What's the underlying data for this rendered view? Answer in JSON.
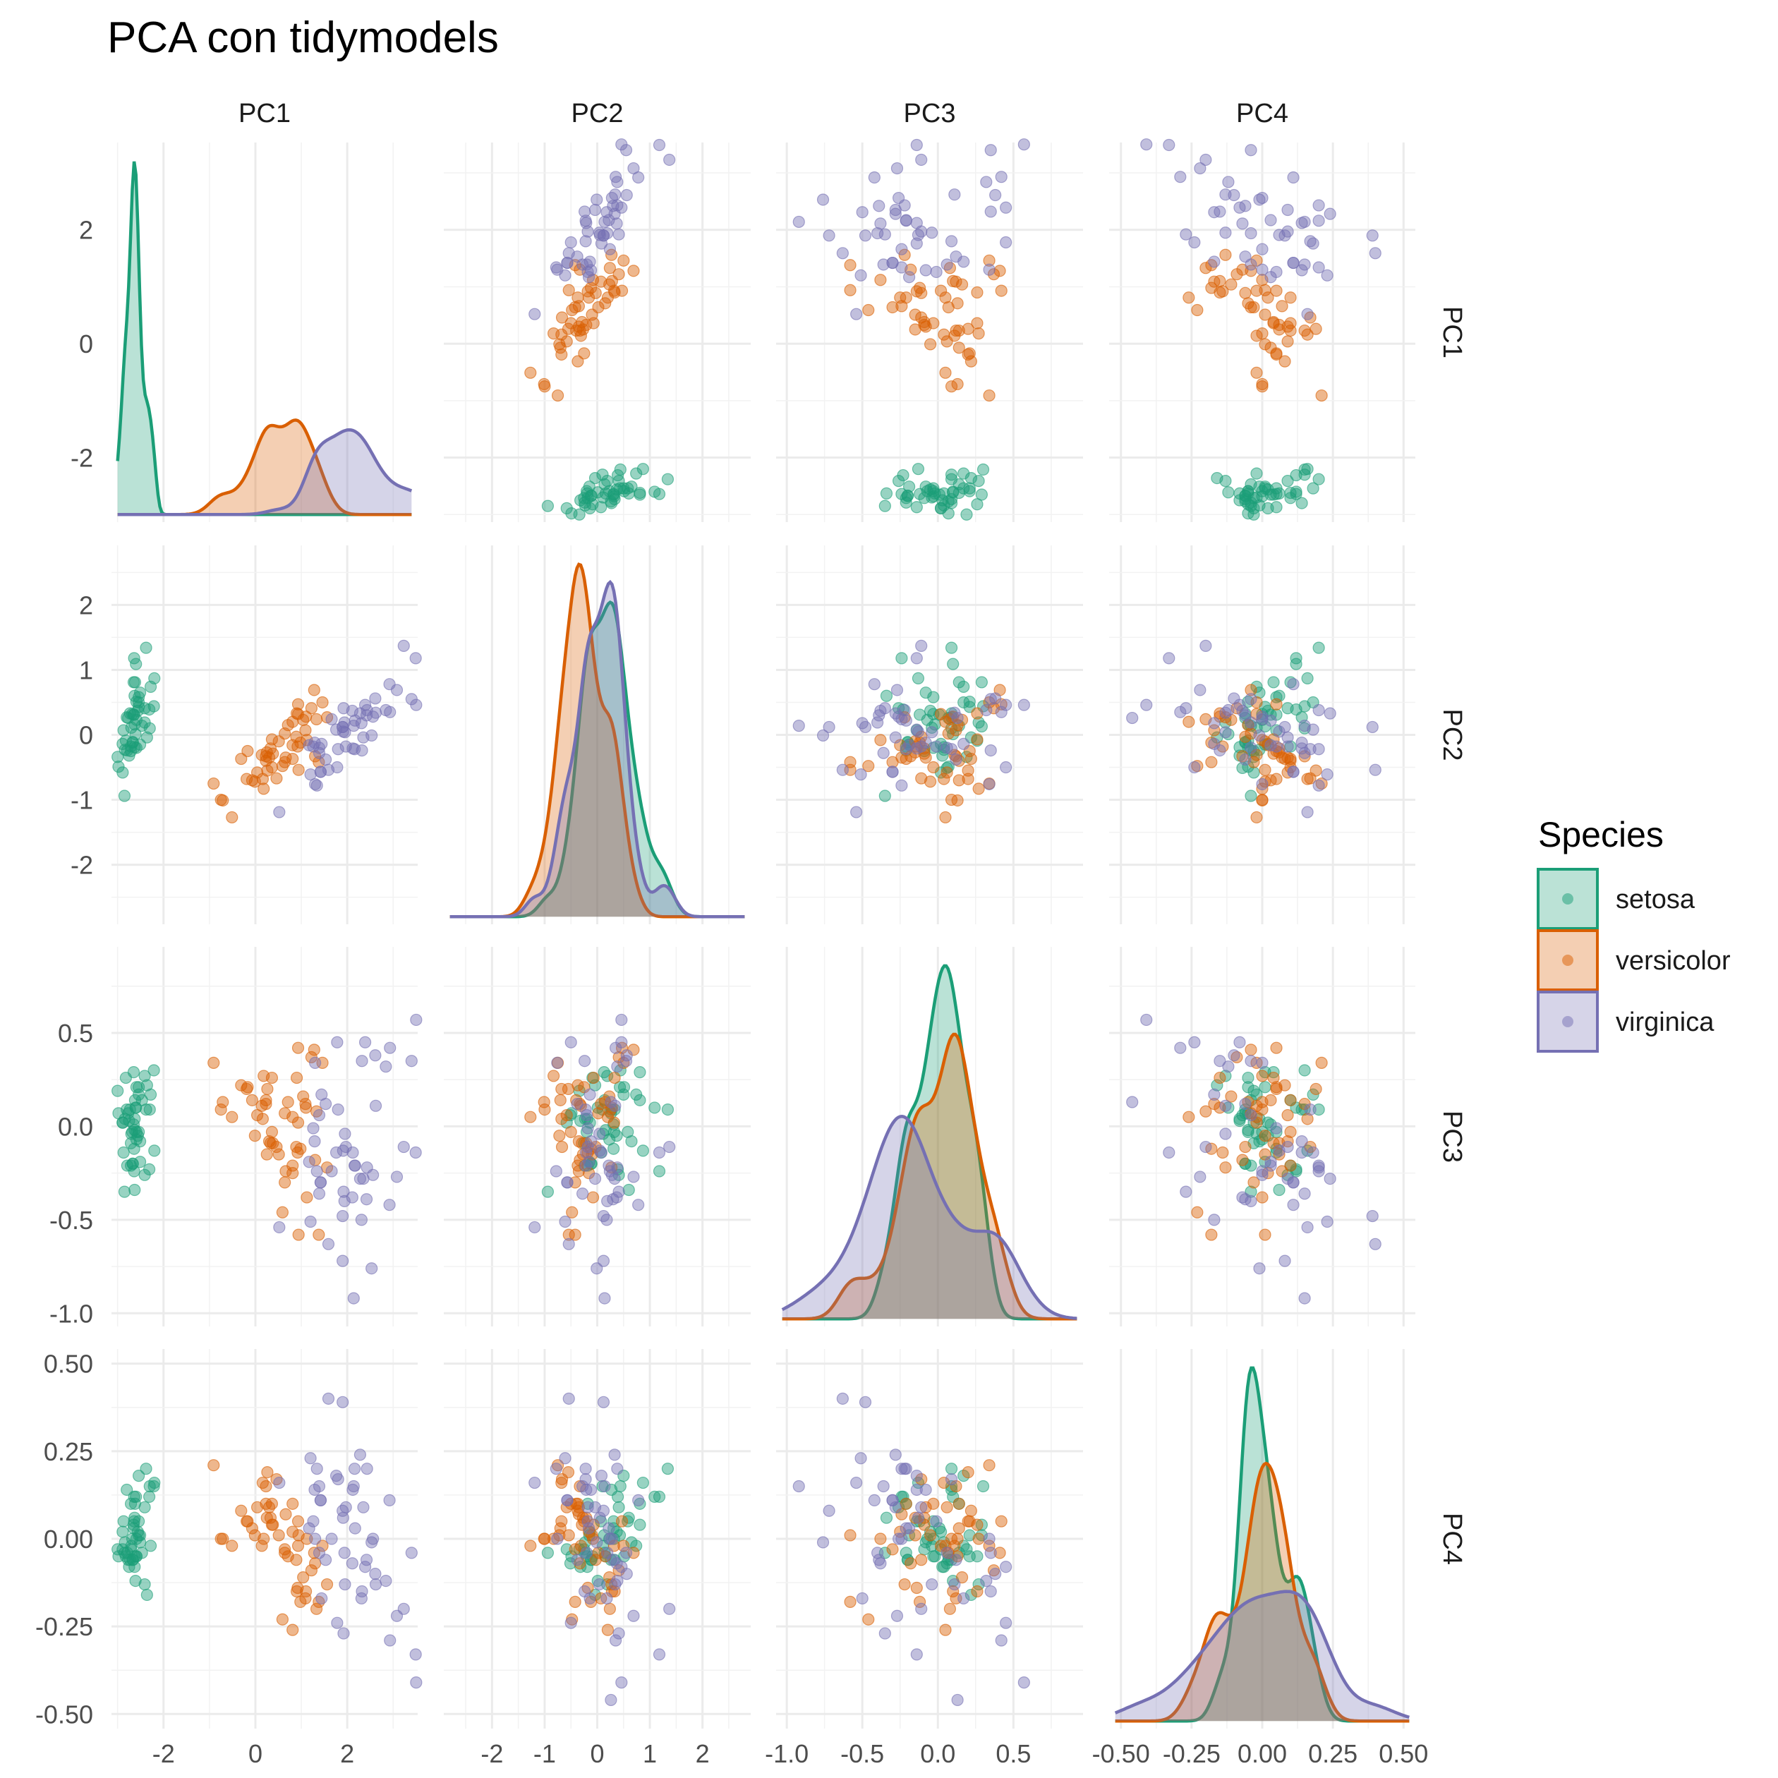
{
  "title": "PCA con tidymodels",
  "legend": {
    "title": "Species",
    "entries": [
      {
        "name": "setosa",
        "color": "#1B9E77"
      },
      {
        "name": "versicolor",
        "color": "#D95F02"
      },
      {
        "name": "virginica",
        "color": "#7570B3"
      }
    ]
  },
  "chart_data": {
    "type": "scatter",
    "subtype": "pairs-matrix",
    "variables": [
      "PC1",
      "PC2",
      "PC3",
      "PC4"
    ],
    "diagonal": "density",
    "grid": true,
    "legend_position": "right",
    "axes": {
      "PC1": {
        "range": [
          -3.0,
          3.4
        ],
        "ticks": [
          -2,
          0,
          2
        ],
        "tick_labels": [
          "-2",
          "0",
          "2"
        ]
      },
      "PC2": {
        "range": [
          -2.8,
          2.8
        ],
        "ticks": [
          -2,
          -1,
          0,
          1,
          2
        ],
        "tick_labels": [
          "-2",
          "-1",
          "0",
          "1",
          "2"
        ]
      },
      "PC3": {
        "range": [
          -1.03,
          0.92
        ],
        "ticks": [
          -1.0,
          -0.5,
          0.0,
          0.5
        ],
        "tick_labels": [
          "-1.0",
          "-0.5",
          "0.0",
          "0.5"
        ]
      },
      "PC4": {
        "range": [
          -0.52,
          0.52
        ],
        "ticks": [
          -0.5,
          -0.25,
          0.0,
          0.25,
          0.5
        ],
        "tick_labels": [
          "-0.50",
          "-0.25",
          "0.00",
          "0.25",
          "0.50"
        ]
      }
    },
    "series": [
      {
        "name": "setosa",
        "color": "#1B9E77",
        "points": [
          [
            -2.68,
            0.32,
            -0.03,
            0.0
          ],
          [
            -2.71,
            -0.18,
            -0.21,
            0.1
          ],
          [
            -2.89,
            -0.14,
            0.02,
            0.02
          ],
          [
            -2.75,
            -0.32,
            0.03,
            -0.08
          ],
          [
            -2.73,
            0.33,
            0.09,
            -0.06
          ],
          [
            -2.28,
            0.74,
            0.17,
            -0.02
          ],
          [
            -2.82,
            -0.09,
            0.26,
            -0.05
          ],
          [
            -2.63,
            0.16,
            -0.02,
            -0.05
          ],
          [
            -2.89,
            -0.58,
            0.02,
            -0.03
          ],
          [
            -2.67,
            -0.11,
            -0.2,
            -0.06
          ],
          [
            -2.51,
            0.65,
            -0.08,
            -0.01
          ],
          [
            -2.61,
            0.01,
            0.1,
            -0.12
          ],
          [
            -2.79,
            -0.24,
            -0.21,
            -0.04
          ],
          [
            -3.23,
            -0.51,
            0.06,
            -0.07
          ],
          [
            -2.64,
            1.18,
            -0.24,
            0.12
          ],
          [
            -2.38,
            1.34,
            0.09,
            0.2
          ],
          [
            -2.62,
            0.81,
            0.14,
            0.1
          ],
          [
            -2.65,
            0.31,
            0.01,
            0.03
          ],
          [
            -2.2,
            0.87,
            -0.13,
            0.16
          ],
          [
            -2.59,
            0.51,
            0.21,
            -0.05
          ],
          [
            -2.31,
            0.39,
            -0.23,
            0.12
          ],
          [
            -2.54,
            0.43,
            0.21,
            0.01
          ],
          [
            -3.22,
            0.13,
            0.29,
            0.01
          ],
          [
            -2.3,
            0.1,
            0.09,
            0.15
          ],
          [
            -2.36,
            -0.04,
            0.22,
            -0.16
          ],
          [
            -2.51,
            -0.15,
            -0.19,
            0.01
          ],
          [
            -2.47,
            0.14,
            0.14,
            -0.04
          ],
          [
            -2.56,
            0.37,
            -0.05,
            0.02
          ],
          [
            -2.64,
            0.31,
            -0.12,
            0.05
          ],
          [
            -2.63,
            -0.19,
            0.04,
            -0.08
          ],
          [
            -2.59,
            -0.2,
            -0.03,
            -0.05
          ],
          [
            -2.41,
            0.41,
            -0.26,
            0.09
          ],
          [
            -2.65,
            0.81,
            0.29,
            0.04
          ],
          [
            -2.6,
            1.09,
            0.1,
            0.12
          ],
          [
            -2.67,
            -0.12,
            -0.2,
            -0.06
          ],
          [
            -2.87,
            0.07,
            -0.14,
            0.05
          ],
          [
            -2.63,
            0.6,
            -0.34,
            0.06
          ],
          [
            -2.8,
            0.27,
            0.09,
            0.14
          ],
          [
            -2.98,
            -0.49,
            0.07,
            -0.05
          ],
          [
            -2.59,
            0.23,
            -0.07,
            0.0
          ],
          [
            -2.77,
            0.26,
            0.07,
            -0.06
          ],
          [
            -2.85,
            -0.94,
            -0.35,
            -0.04
          ],
          [
            -3.0,
            -0.34,
            0.19,
            -0.03
          ],
          [
            -2.41,
            0.19,
            0.27,
            -0.13
          ],
          [
            -2.21,
            0.44,
            0.3,
            0.15
          ],
          [
            -2.71,
            -0.25,
            -0.09,
            -0.03
          ],
          [
            -2.54,
            0.5,
            0.17,
            0.18
          ],
          [
            -2.84,
            -0.23,
            0.04,
            -0.01
          ],
          [
            -2.54,
            0.58,
            -0.03,
            0.05
          ],
          [
            -2.7,
            0.11,
            -0.04,
            -0.02
          ]
        ]
      },
      {
        "name": "versicolor",
        "color": "#D95F02",
        "points": [
          [
            1.28,
            0.69,
            0.41,
            -0.04
          ],
          [
            0.93,
            0.32,
            0.02,
            -0.02
          ],
          [
            1.46,
            0.5,
            0.34,
            -0.02
          ],
          [
            0.18,
            -0.83,
            0.27,
            0.0
          ],
          [
            1.09,
            0.07,
            0.12,
            -0.17
          ],
          [
            0.64,
            -0.42,
            -0.3,
            -0.03
          ],
          [
            1.1,
            0.28,
            0.1,
            -0.15
          ],
          [
            -0.75,
            -1.0,
            0.09,
            0.0
          ],
          [
            1.04,
            0.23,
            0.16,
            -0.11
          ],
          [
            -0.01,
            -0.72,
            -0.05,
            0.01
          ],
          [
            -0.51,
            -1.27,
            0.05,
            -0.02
          ],
          [
            0.51,
            -0.1,
            -0.15,
            0.01
          ],
          [
            0.26,
            -0.55,
            0.2,
            0.19
          ],
          [
            0.98,
            -0.12,
            -0.12,
            -0.18
          ],
          [
            -0.17,
            -0.25,
            0.21,
            0.05
          ],
          [
            0.93,
            0.47,
            0.42,
            0.05
          ],
          [
            0.66,
            -0.35,
            -0.24,
            0.07
          ],
          [
            0.23,
            -0.33,
            0.12,
            0.15
          ],
          [
            0.94,
            -0.54,
            -0.58,
            0.01
          ],
          [
            0.04,
            -0.58,
            0.06,
            0.09
          ],
          [
            1.12,
            -0.08,
            -0.38,
            0.0
          ],
          [
            0.36,
            -0.07,
            0.26,
            0.04
          ],
          [
            1.3,
            -0.33,
            -0.18,
            -0.07
          ],
          [
            0.92,
            -0.18,
            -0.14,
            -0.14
          ],
          [
            0.71,
            0.15,
            0.13,
            -0.05
          ],
          [
            0.9,
            0.33,
            0.26,
            -0.15
          ],
          [
            1.33,
            0.24,
            0.08,
            -0.2
          ],
          [
            1.56,
            0.27,
            -0.22,
            -0.13
          ],
          [
            0.81,
            -0.16,
            -0.25,
            0.02
          ],
          [
            -0.31,
            -0.37,
            0.22,
            0.08
          ],
          [
            -0.07,
            -0.7,
            0.14,
            0.03
          ],
          [
            -0.19,
            -0.68,
            0.2,
            0.05
          ],
          [
            0.14,
            -0.31,
            0.11,
            -0.02
          ],
          [
            1.38,
            -0.42,
            -0.58,
            -0.18
          ],
          [
            0.59,
            -0.48,
            -0.46,
            -0.23
          ],
          [
            0.81,
            0.2,
            0.05,
            -0.26
          ],
          [
            1.22,
            0.41,
            0.37,
            -0.09
          ],
          [
            0.81,
            -0.37,
            -0.21,
            0.1
          ],
          [
            0.25,
            -0.27,
            -0.15,
            0.06
          ],
          [
            0.16,
            -0.68,
            0.04,
            0.16
          ],
          [
            0.46,
            -0.67,
            -0.11,
            0.17
          ],
          [
            0.89,
            -0.03,
            -0.11,
            -0.06
          ],
          [
            0.23,
            -0.4,
            0.14,
            0.1
          ],
          [
            -0.71,
            -1.01,
            0.13,
            0.0
          ],
          [
            0.36,
            -0.5,
            -0.03,
            0.1
          ],
          [
            0.33,
            -0.21,
            -0.09,
            0.06
          ],
          [
            0.38,
            -0.29,
            -0.09,
            0.04
          ],
          [
            0.64,
            0.02,
            0.07,
            -0.04
          ],
          [
            -0.91,
            -0.75,
            0.34,
            0.21
          ],
          [
            0.3,
            -0.35,
            -0.08,
            0.09
          ]
        ]
      },
      {
        "name": "virginica",
        "color": "#7570B3",
        "points": [
          [
            2.53,
            -0.01,
            -0.76,
            -0.01
          ],
          [
            1.42,
            -0.57,
            -0.3,
            0.11
          ],
          [
            2.62,
            0.34,
            0.11,
            -0.13
          ],
          [
            1.97,
            -0.18,
            -0.11,
            0.09
          ],
          [
            2.35,
            -0.04,
            -0.28,
            0.09
          ],
          [
            3.4,
            0.55,
            0.35,
            -0.04
          ],
          [
            0.52,
            -1.19,
            -0.54,
            0.16
          ],
          [
            2.93,
            0.35,
            0.42,
            -0.29
          ],
          [
            2.32,
            -0.24,
            0.35,
            -0.15
          ],
          [
            2.92,
            0.78,
            -0.42,
            0.11
          ],
          [
            1.66,
            0.24,
            -0.24,
            0.0
          ],
          [
            1.8,
            -0.22,
            0.09,
            0.17
          ],
          [
            2.17,
            0.22,
            -0.21,
            0.03
          ],
          [
            1.34,
            -0.78,
            -0.24,
            0.2
          ],
          [
            1.59,
            -0.54,
            -0.63,
            0.4
          ],
          [
            1.9,
            0.12,
            -0.48,
            0.39
          ],
          [
            1.95,
            0.04,
            -0.04,
            -0.13
          ],
          [
            3.49,
            1.18,
            -0.14,
            -0.33
          ],
          [
            3.8,
            0.26,
            0.13,
            -0.46
          ],
          [
            1.3,
            -0.76,
            0.34,
            0.0
          ],
          [
            2.43,
            0.38,
            -0.22,
            0.2
          ],
          [
            1.2,
            -0.61,
            -0.51,
            0.23
          ],
          [
            3.5,
            0.46,
            0.57,
            -0.41
          ],
          [
            1.39,
            -0.2,
            0.06,
            -0.04
          ],
          [
            2.28,
            0.33,
            -0.28,
            0.24
          ],
          [
            2.61,
            0.56,
            0.38,
            -0.1
          ],
          [
            1.26,
            -0.18,
            -0.01,
            0.05
          ],
          [
            1.29,
            -0.12,
            -0.08,
            0.14
          ],
          [
            2.12,
            -0.21,
            -0.14,
            0.14
          ],
          [
            2.39,
            0.46,
            0.45,
            -0.08
          ],
          [
            2.84,
            0.38,
            0.32,
            -0.12
          ],
          [
            3.23,
            1.37,
            -0.11,
            -0.2
          ],
          [
            2.16,
            -0.22,
            -0.21,
            0.2
          ],
          [
            1.44,
            -0.14,
            0.17,
            -0.17
          ],
          [
            1.78,
            -0.5,
            0.45,
            -0.24
          ],
          [
            3.08,
            0.69,
            -0.27,
            -0.22
          ],
          [
            2.14,
            0.14,
            -0.92,
            0.15
          ],
          [
            1.91,
            0.05,
            -0.13,
            0.06
          ],
          [
            1.17,
            -0.16,
            -0.19,
            0.03
          ],
          [
            2.11,
            0.37,
            -0.38,
            -0.07
          ],
          [
            2.31,
            0.18,
            -0.5,
            -0.17
          ],
          [
            1.92,
            0.41,
            -0.35,
            -0.27
          ],
          [
            1.42,
            -0.57,
            -0.3,
            0.11
          ],
          [
            2.56,
            0.28,
            -0.26,
            0.0
          ],
          [
            2.42,
            0.3,
            -0.39,
            -0.06
          ],
          [
            1.94,
            0.19,
            -0.4,
            -0.04
          ],
          [
            1.53,
            -0.38,
            0.12,
            -0.06
          ],
          [
            1.76,
            0.08,
            -0.14,
            0.18
          ],
          [
            1.9,
            0.12,
            -0.72,
            0.08
          ],
          [
            1.39,
            -0.28,
            -0.36,
            0.15
          ]
        ]
      }
    ]
  }
}
